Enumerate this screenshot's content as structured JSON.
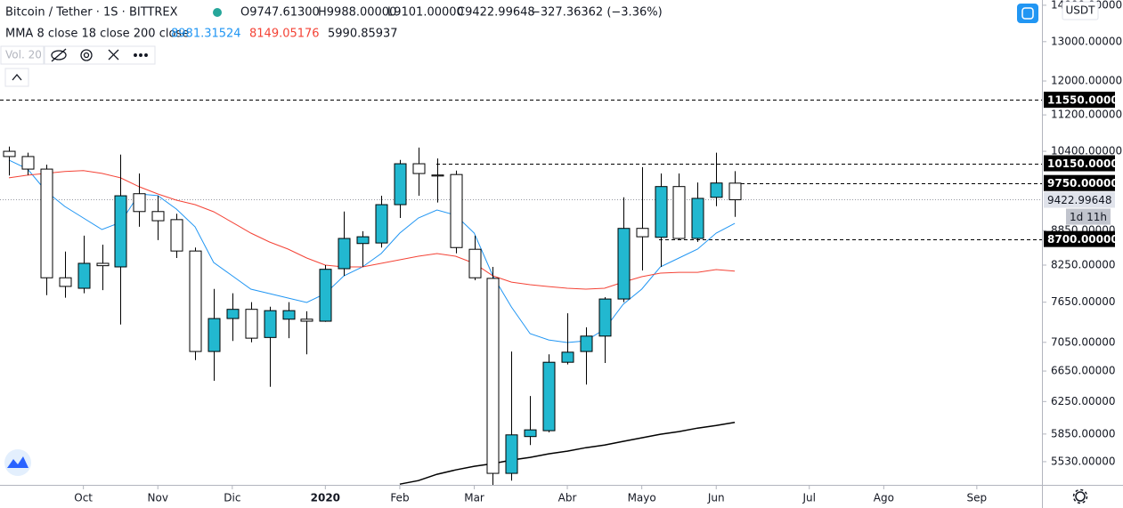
{
  "header": {
    "symbol": "Bitcoin / Tether · 1S · BITTREX",
    "ohlc": [
      "O9747.61300",
      "H9988.00000",
      "L9101.00000",
      "C9422.99648",
      "−327.36362 (−3.36%)"
    ],
    "indicator": "MMA 8 close 18 close 200 close",
    "volume": "Vol. 20",
    "currency": "USDT",
    "countdown": "1d 11h"
  },
  "chart_data": {
    "type": "candlestick",
    "log_scale": true,
    "x": [
      0,
      1,
      2,
      3,
      4,
      5,
      6,
      7,
      8,
      9,
      10,
      11,
      12,
      13,
      14,
      15,
      16,
      17,
      18,
      19,
      20,
      21,
      22,
      23,
      24,
      25,
      26,
      27,
      28,
      29,
      30,
      31,
      32,
      33,
      34,
      35,
      36,
      37,
      38,
      39
    ],
    "open": [
      10400,
      10290,
      10030,
      8040,
      7870,
      8280,
      8220,
      9540,
      9200,
      9050,
      8490,
      6920,
      7400,
      7540,
      7120,
      7390,
      7390,
      7360,
      8190,
      8620,
      8630,
      9330,
      10140,
      9910,
      9920,
      8520,
      8030,
      5400,
      5820,
      5890,
      6770,
      6920,
      7140,
      7700,
      8890,
      8730,
      9680,
      8710,
      9470,
      9747.613
    ],
    "high": [
      10500,
      10370,
      10120,
      8480,
      8760,
      8600,
      10330,
      9940,
      9500,
      9160,
      8550,
      7860,
      7790,
      7650,
      7580,
      7650,
      7510,
      8250,
      9200,
      8840,
      9500,
      10220,
      10480,
      10250,
      10000,
      8760,
      8220,
      6920,
      6320,
      6880,
      7480,
      7270,
      7730,
      9470,
      10070,
      9940,
      9940,
      9760,
      10370,
      9988
    ],
    "low": [
      9900,
      9910,
      7760,
      7720,
      7790,
      7840,
      7310,
      8920,
      8680,
      8370,
      6800,
      6520,
      7070,
      7050,
      6440,
      7110,
      6880,
      7350,
      8070,
      8220,
      8550,
      9080,
      9500,
      9370,
      8450,
      8000,
      5270,
      5320,
      5720,
      5870,
      6740,
      6470,
      6760,
      7650,
      8160,
      8220,
      8680,
      8650,
      9300,
      9101
    ],
    "close": [
      10290,
      10030,
      8040,
      7900,
      8280,
      8240,
      9500,
      9200,
      9030,
      8490,
      6920,
      7400,
      7540,
      7110,
      7520,
      7520,
      7360,
      8180,
      8710,
      8740,
      9330,
      10140,
      9940,
      9890,
      8550,
      8040,
      5400,
      5840,
      5900,
      6770,
      6910,
      7140,
      7700,
      8890,
      8740,
      9680,
      8710,
      9450,
      9750,
      9422.99648
    ],
    "up_color": "#22b8d0",
    "down_color": "#ffffff",
    "border_color": "#000000",
    "series": [
      {
        "color": "#2196f3",
        "values": [
          10216,
          10033,
          9588,
          9297,
          9081,
          8870,
          9000,
          9536,
          9502,
          9247,
          8919,
          8295,
          8072,
          7856,
          7785,
          7715,
          7645,
          7785,
          8072,
          8220,
          8446,
          8806,
          9081,
          9230,
          9131,
          8806,
          8072,
          7576,
          7176,
          7085,
          7047,
          7072,
          7241,
          7617,
          7856,
          8220,
          8370,
          8523,
          8806,
          8981.31524
        ]
      },
      {
        "color": "#f44336",
        "values": [
          9853,
          9906,
          9943,
          9980,
          9998,
          9943,
          9853,
          9676,
          9536,
          9416,
          9331,
          9197,
          9000,
          8806,
          8647,
          8523,
          8370,
          8250,
          8220,
          8220,
          8280,
          8340,
          8400,
          8446,
          8400,
          8280,
          8072,
          7970,
          7927,
          7898,
          7870,
          7856,
          7870,
          7970,
          8058,
          8116,
          8130,
          8130,
          8175,
          8149.05176
        ]
      },
      {
        "color": "#000000",
        "values": [
          null,
          null,
          null,
          null,
          null,
          null,
          null,
          null,
          null,
          null,
          null,
          null,
          null,
          null,
          null,
          null,
          null,
          null,
          null,
          null,
          null,
          5283,
          5321,
          5390,
          5438,
          5478,
          5508,
          5548,
          5579,
          5619,
          5650,
          5690,
          5721,
          5763,
          5805,
          5847,
          5879,
          5921,
          5953,
          5990.85937
        ]
      }
    ],
    "xlim": [
      -0.48,
      55.5
    ],
    "xticks": [
      {
        "value": 4,
        "label": "Oct"
      },
      {
        "value": 8,
        "label": "Nov"
      },
      {
        "value": 12,
        "label": "Dic"
      },
      {
        "value": 17,
        "label": "2020"
      },
      {
        "value": 21,
        "label": "Feb"
      },
      {
        "value": 25,
        "label": "Mar"
      },
      {
        "value": 30,
        "label": "Abr"
      },
      {
        "value": 34,
        "label": "Mayo"
      },
      {
        "value": 38,
        "label": "Jun"
      },
      {
        "value": 43,
        "label": "Jul"
      },
      {
        "value": 47,
        "label": "Ago"
      },
      {
        "value": 52,
        "label": "Sep"
      }
    ],
    "ylim": [
      5275,
      14150
    ],
    "yticks": [
      {
        "value": 14000,
        "label": "14000.00000"
      },
      {
        "value": 13000,
        "label": "13000.00000"
      },
      {
        "value": 12000,
        "label": "12000.00000"
      },
      {
        "value": 11200,
        "label": "11200.00000"
      },
      {
        "value": 10400,
        "label": "10400.00000"
      },
      {
        "value": 8850,
        "label": "8850.00000"
      },
      {
        "value": 8250,
        "label": "8250.00000"
      },
      {
        "value": 7650,
        "label": "7650.00000"
      },
      {
        "value": 7050,
        "label": "7050.00000"
      },
      {
        "value": 6650,
        "label": "6650.00000"
      },
      {
        "value": 6250,
        "label": "6250.00000"
      },
      {
        "value": 5850,
        "label": "5850.00000"
      },
      {
        "value": 5530,
        "label": "5530.00000"
      }
    ],
    "price_lines": [
      {
        "value": 11550,
        "label": "11550.00000"
      },
      {
        "value": 10150,
        "label": "10150.00000"
      },
      {
        "value": 9750,
        "label": "9750.00000"
      },
      {
        "value": 8700,
        "label": "8700.00000"
      }
    ]
  }
}
